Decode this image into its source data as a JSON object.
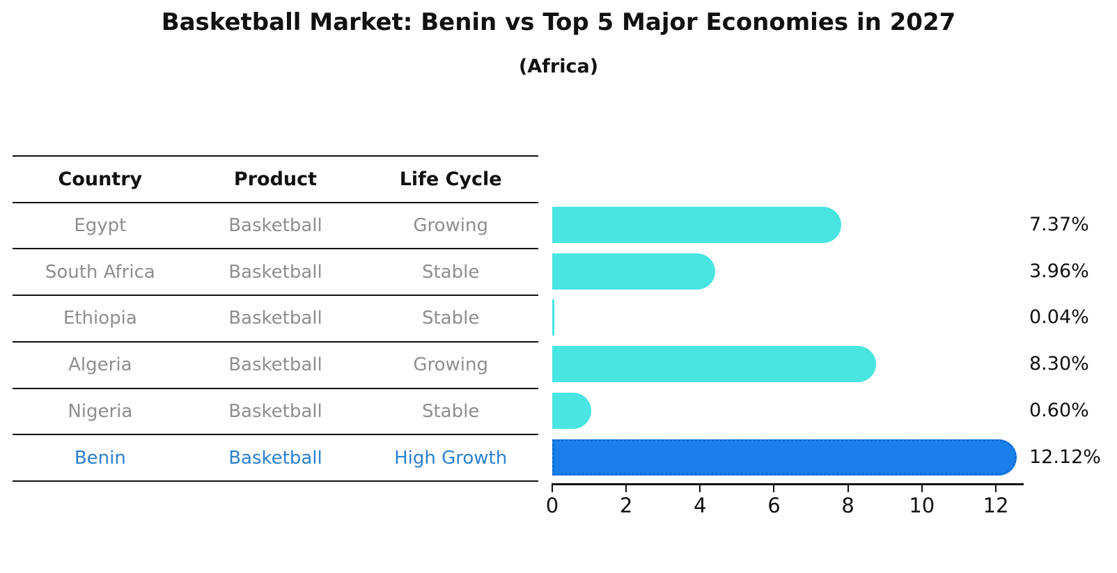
{
  "title": "Basketball Market: Benin vs Top 5 Major Economies in 2027",
  "subtitle": "(Africa)",
  "table": {
    "headers": [
      "Country",
      "Product",
      "Life Cycle"
    ],
    "rows": [
      {
        "country": "Egypt",
        "product": "Basketball",
        "life_cycle": "Growing",
        "highlight": false
      },
      {
        "country": "South Africa",
        "product": "Basketball",
        "life_cycle": "Stable",
        "highlight": false
      },
      {
        "country": "Ethiopia",
        "product": "Basketball",
        "life_cycle": "Stable",
        "highlight": false
      },
      {
        "country": "Algeria",
        "product": "Basketball",
        "life_cycle": "Growing",
        "highlight": false
      },
      {
        "country": "Nigeria",
        "product": "Basketball",
        "life_cycle": "Stable",
        "highlight": false
      },
      {
        "country": "Benin",
        "product": "Basketball",
        "life_cycle": "High Growth",
        "highlight": true
      }
    ]
  },
  "chart_data": {
    "type": "bar",
    "orientation": "horizontal",
    "title": "Basketball Market: Benin vs Top 5 Major Economies in 2027",
    "subtitle": "(Africa)",
    "categories": [
      "Egypt",
      "South Africa",
      "Ethiopia",
      "Algeria",
      "Nigeria",
      "Benin"
    ],
    "values": [
      7.37,
      3.96,
      0.04,
      8.3,
      0.6,
      12.12
    ],
    "value_labels": [
      "7.37%",
      "3.96%",
      "0.04%",
      "8.30%",
      "0.60%",
      "12.12%"
    ],
    "unit": "%",
    "x_ticks": [
      "0",
      "2",
      "4",
      "6",
      "8",
      "10",
      "12"
    ],
    "x_tick_values": [
      0,
      2,
      4,
      6,
      8,
      10,
      12
    ],
    "xlim": [
      0,
      12.75
    ],
    "grid": false,
    "legend": null,
    "highlight_index": 5,
    "colors": {
      "bar": "#48e5e1",
      "highlight_bar": "#1b7feb",
      "highlight_bar_border": "#0d6bd4",
      "highlight_text": "#2b80d0",
      "table_text": "#8e8e8e",
      "text": "#111111"
    }
  }
}
